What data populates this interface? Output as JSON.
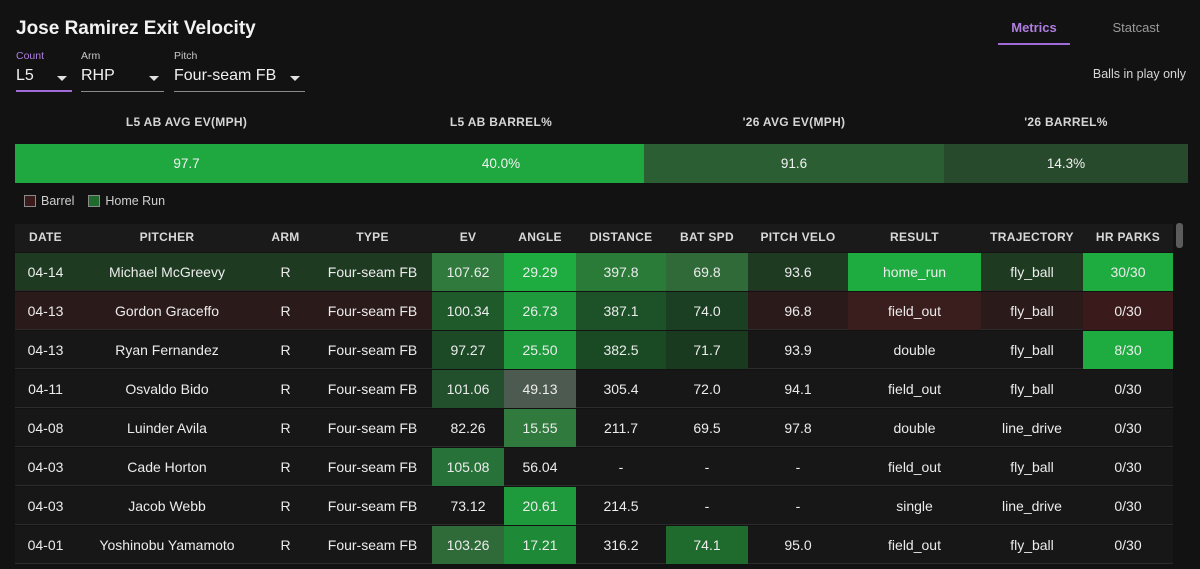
{
  "title": "Jose Ramirez Exit Velocity",
  "tabs": [
    "Metrics",
    "Statcast"
  ],
  "balls_in_play": "Balls in play only",
  "filters": [
    {
      "label": "Count",
      "value": "L5"
    },
    {
      "label": "Arm",
      "value": "RHP"
    },
    {
      "label": "Pitch",
      "value": "Four-seam FB"
    }
  ],
  "summary": [
    {
      "label": "L5 AB AVG EV(MPH)",
      "value": "97.7"
    },
    {
      "label": "L5 AB BARREL%",
      "value": "40.0%"
    },
    {
      "label": "'26 AVG EV(MPH)",
      "value": "91.6"
    },
    {
      "label": "'26 BARREL%",
      "value": "14.3%"
    }
  ],
  "legend": [
    "Barrel",
    "Home Run"
  ],
  "columns": [
    "DATE",
    "PITCHER",
    "ARM",
    "TYPE",
    "EV",
    "ANGLE",
    "DISTANCE",
    "BAT SPD",
    "PITCH VELO",
    "RESULT",
    "TRAJECTORY",
    "HR PARKS"
  ],
  "rows": [
    [
      "04-14",
      "Michael McGreevy",
      "R",
      "Four-seam FB",
      "107.62",
      "29.29",
      "397.8",
      "69.8",
      "93.6",
      "home_run",
      "fly_ball",
      "30/30"
    ],
    [
      "04-13",
      "Gordon Graceffo",
      "R",
      "Four-seam FB",
      "100.34",
      "26.73",
      "387.1",
      "74.0",
      "96.8",
      "field_out",
      "fly_ball",
      "0/30"
    ],
    [
      "04-13",
      "Ryan Fernandez",
      "R",
      "Four-seam FB",
      "97.27",
      "25.50",
      "382.5",
      "71.7",
      "93.9",
      "double",
      "fly_ball",
      "8/30"
    ],
    [
      "04-11",
      "Osvaldo Bido",
      "R",
      "Four-seam FB",
      "101.06",
      "49.13",
      "305.4",
      "72.0",
      "94.1",
      "field_out",
      "fly_ball",
      "0/30"
    ],
    [
      "04-08",
      "Luinder Avila",
      "R",
      "Four-seam FB",
      "82.26",
      "15.55",
      "211.7",
      "69.5",
      "97.8",
      "double",
      "line_drive",
      "0/30"
    ],
    [
      "04-03",
      "Cade Horton",
      "R",
      "Four-seam FB",
      "105.08",
      "56.04",
      "-",
      "-",
      "-",
      "field_out",
      "fly_ball",
      "0/30"
    ],
    [
      "04-03",
      "Jacob Webb",
      "R",
      "Four-seam FB",
      "73.12",
      "20.61",
      "214.5",
      "-",
      "-",
      "single",
      "line_drive",
      "0/30"
    ],
    [
      "04-01",
      "Yoshinobu Yamamoto",
      "R",
      "Four-seam FB",
      "103.26",
      "17.21",
      "316.2",
      "74.1",
      "95.0",
      "field_out",
      "fly_ball",
      "0/30"
    ]
  ],
  "colors": {
    "accent": "#a06bd6",
    "summary_bg": [
      "#1ea83f",
      "#1ea83f",
      "#2b5e33",
      "#264a2b"
    ],
    "legend": [
      "#3a1a1a",
      "#1f6b2e"
    ],
    "row_bg": [
      "#1e3b22",
      "#2a1a1a",
      "#171717",
      "#171717",
      "#171717",
      "#171717",
      "#171717",
      "#171717"
    ],
    "cells": [
      [
        null,
        null,
        null,
        null,
        "#2f7a3c",
        "#1eab40",
        "#2b7b38",
        "#2f6a38",
        null,
        "#1eab40",
        null,
        "#1eab40"
      ],
      [
        null,
        null,
        null,
        null,
        "#1e5a2a",
        "#1e9a3c",
        "#1d5127",
        "#1a3f22",
        null,
        "#3a1d1d",
        null,
        "#3a1a1a"
      ],
      [
        null,
        null,
        null,
        null,
        "#1c4a26",
        "#1e9a3c",
        "#1a4a24",
        "#1a3a20",
        null,
        null,
        null,
        "#1eab40"
      ],
      [
        null,
        null,
        null,
        null,
        "#224f2c",
        "#4d5a4f",
        null,
        null,
        null,
        null,
        null,
        null
      ],
      [
        null,
        null,
        null,
        null,
        null,
        "#2f7a3c",
        null,
        null,
        null,
        null,
        null,
        null
      ],
      [
        null,
        null,
        null,
        null,
        "#277238",
        null,
        null,
        null,
        null,
        null,
        null,
        null
      ],
      [
        null,
        null,
        null,
        null,
        null,
        "#1e9a3c",
        null,
        null,
        null,
        null,
        null,
        null
      ],
      [
        null,
        null,
        null,
        null,
        "#2e6b38",
        "#1e8a38",
        null,
        "#1f6b2e",
        null,
        null,
        null,
        null
      ]
    ]
  }
}
